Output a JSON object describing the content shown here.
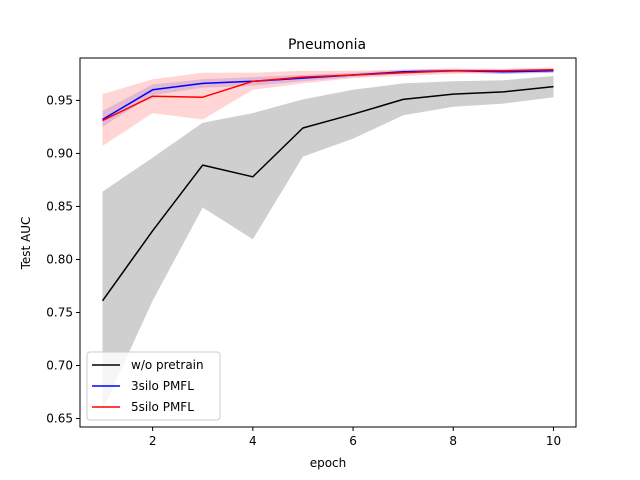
{
  "chart_data": {
    "type": "line",
    "title": "Pneumonia",
    "xlabel": "epoch",
    "ylabel": "Test AUC",
    "xlim": [
      0.55,
      10.45
    ],
    "ylim": [
      0.642,
      0.99
    ],
    "xticks": [
      2,
      4,
      6,
      8,
      10
    ],
    "xtick_labels": [
      "2",
      "4",
      "6",
      "8",
      "10"
    ],
    "yticks": [
      0.65,
      0.7,
      0.75,
      0.8,
      0.85,
      0.9,
      0.95
    ],
    "ytick_labels": [
      "0.65",
      "0.70",
      "0.75",
      "0.80",
      "0.85",
      "0.90",
      "0.95"
    ],
    "grid": false,
    "legend_position": "lower-left",
    "x": [
      1,
      2,
      3,
      4,
      5,
      6,
      7,
      8,
      9,
      10
    ],
    "series": [
      {
        "name": "w/o pretrain",
        "color": "#000000",
        "band_color": "#cccccc",
        "values": [
          0.761,
          0.827,
          0.889,
          0.878,
          0.924,
          0.937,
          0.951,
          0.956,
          0.958,
          0.963
        ],
        "lower": [
          0.658,
          0.761,
          0.849,
          0.819,
          0.897,
          0.914,
          0.936,
          0.944,
          0.947,
          0.953
        ],
        "upper": [
          0.864,
          0.896,
          0.929,
          0.938,
          0.951,
          0.96,
          0.966,
          0.968,
          0.969,
          0.973
        ]
      },
      {
        "name": "3silo PMFL",
        "color": "#0000ff",
        "band_color": "#6f6ff0",
        "values": [
          0.932,
          0.96,
          0.966,
          0.968,
          0.971,
          0.974,
          0.977,
          0.978,
          0.977,
          0.978
        ],
        "lower": [
          0.925,
          0.955,
          0.962,
          0.964,
          0.968,
          0.972,
          0.975,
          0.976,
          0.975,
          0.976
        ],
        "upper": [
          0.94,
          0.965,
          0.97,
          0.972,
          0.974,
          0.976,
          0.979,
          0.98,
          0.979,
          0.98
        ]
      },
      {
        "name": "5silo PMFL",
        "color": "#ff0000",
        "band_color": "#ffb3b3",
        "values": [
          0.931,
          0.954,
          0.953,
          0.968,
          0.972,
          0.974,
          0.976,
          0.978,
          0.978,
          0.979
        ],
        "lower": [
          0.907,
          0.938,
          0.932,
          0.96,
          0.966,
          0.971,
          0.973,
          0.975,
          0.976,
          0.977
        ],
        "upper": [
          0.956,
          0.97,
          0.976,
          0.976,
          0.978,
          0.978,
          0.979,
          0.98,
          0.98,
          0.981
        ]
      }
    ]
  }
}
